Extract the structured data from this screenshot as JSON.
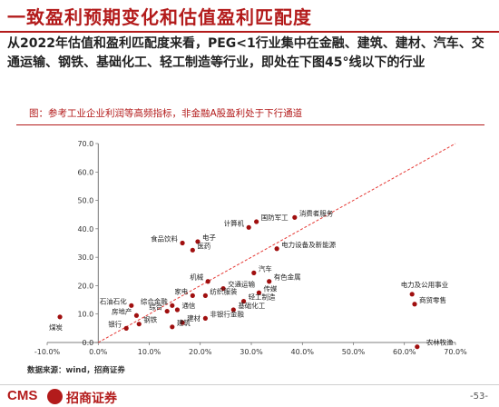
{
  "header": {
    "title": "一致盈利预期变化和估值盈利匹配度",
    "intro": "从2022年估值和盈利匹配度来看，PEG<1行业集中在金融、建筑、建材、汽车、交通运输、钢铁、基础化工、轻工制造等行业，即处在下图45°线以下的行业"
  },
  "figure": {
    "caption": "图：参考工业企业利润等高频指标，非金融A股盈利处于下行通道",
    "source": "数据来源：wind，招商证券"
  },
  "footer": {
    "brand": "CMS",
    "brand_cn": "招商证券",
    "page": "-53-"
  },
  "colors": {
    "accent": "#b31b1b",
    "marker": "#a00f0f",
    "reference_line": "#e53935",
    "axis": "#555555"
  },
  "chart_data": {
    "type": "scatter",
    "xlim": [
      -10,
      70
    ],
    "ylim": [
      0,
      70
    ],
    "xticks": [
      "-10.0%",
      "0.0%",
      "10.0%",
      "20.0%",
      "30.0%",
      "40.0%",
      "50.0%",
      "60.0%",
      "70.0%"
    ],
    "yticks": [
      "0.0",
      "10.0",
      "20.0",
      "30.0",
      "40.0",
      "50.0",
      "60.0",
      "70.0"
    ],
    "reference_line": "45°",
    "grid": false,
    "points": [
      {
        "label": "计算机",
        "x": 29.5,
        "y": 40.5
      },
      {
        "label": "国防军工",
        "x": 31.0,
        "y": 42.5
      },
      {
        "label": "消费者服务",
        "x": 38.5,
        "y": 44.0
      },
      {
        "label": "食品饮料",
        "x": 16.5,
        "y": 35.0
      },
      {
        "label": "电子",
        "x": 19.5,
        "y": 35.5
      },
      {
        "label": "医药",
        "x": 18.5,
        "y": 32.5
      },
      {
        "label": "电力设备及新能源",
        "x": 35.0,
        "y": 33.0
      },
      {
        "label": "机械",
        "x": 21.5,
        "y": 21.5
      },
      {
        "label": "汽车",
        "x": 30.5,
        "y": 24.5
      },
      {
        "label": "有色金属",
        "x": 33.5,
        "y": 21.5
      },
      {
        "label": "交通运输",
        "x": 24.5,
        "y": 19.0
      },
      {
        "label": "传媒",
        "x": 31.5,
        "y": 17.5
      },
      {
        "label": "家电",
        "x": 18.5,
        "y": 16.5
      },
      {
        "label": "纺织服装",
        "x": 21.0,
        "y": 16.5
      },
      {
        "label": "综合金融",
        "x": 14.5,
        "y": 13.0
      },
      {
        "label": "通信",
        "x": 15.5,
        "y": 11.5
      },
      {
        "label": "综合",
        "x": 13.5,
        "y": 11.0
      },
      {
        "label": "轻工制造",
        "x": 28.5,
        "y": 14.5
      },
      {
        "label": "基础化工",
        "x": 26.5,
        "y": 11.5
      },
      {
        "label": "建材",
        "x": 16.5,
        "y": 7.0
      },
      {
        "label": "非银行金融",
        "x": 21.0,
        "y": 8.5
      },
      {
        "label": "石油石化",
        "x": 6.5,
        "y": 13.0
      },
      {
        "label": "房地产",
        "x": 7.5,
        "y": 9.5
      },
      {
        "label": "钢铁",
        "x": 8.0,
        "y": 6.5
      },
      {
        "label": "银行",
        "x": 5.5,
        "y": 5.0
      },
      {
        "label": "建筑",
        "x": 14.5,
        "y": 5.5
      },
      {
        "label": "煤炭",
        "x": -7.5,
        "y": 9.0
      },
      {
        "label": "电力及公用事业",
        "x": 61.5,
        "y": 17.0
      },
      {
        "label": "商贸零售",
        "x": 62.0,
        "y": 13.5
      },
      {
        "label": "农林牧渔",
        "x": 62.5,
        "y": -1.5
      }
    ]
  }
}
